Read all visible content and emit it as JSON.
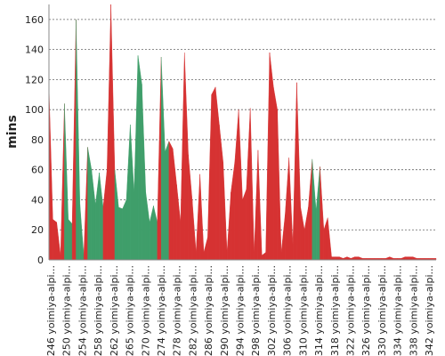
{
  "chart_data": {
    "type": "area",
    "title": "",
    "xlabel": "",
    "ylabel": "mins",
    "ylim": [
      0,
      170
    ],
    "yticks": [
      0,
      20,
      40,
      60,
      80,
      100,
      120,
      140,
      160
    ],
    "grid": true,
    "x_tick_labels": [
      "#246 yoimiya-alpi...",
      "#250 yoimiya-alpi...",
      "#254 yoimiya-alpi...",
      "#258 yoimiya-alpi...",
      "#262 yoimiya-alpi...",
      "#265 yoimiya-alpi...",
      "#270 yoimiya-alpi...",
      "#274 yoimiya-alpi...",
      "#278 yoimiya-alpi...",
      "#282 yoimiya-alpi...",
      "#286 yoimiya-alpi...",
      "#290 yoimiya-alpi...",
      "#294 yoimiya-alpi...",
      "#298 yoimiya-alpi...",
      "#302 yoimiya-alpi...",
      "#306 yoimiya-alpi...",
      "#310 yoimiya-alpi...",
      "#314 yoimiya-alpi...",
      "#318 yoimiya-alpi...",
      "#322 yoimiya-alpi...",
      "#326 yoimiya-alpi...",
      "#330 yoimiya-alpi...",
      "#334 yoimiya-alpi...",
      "#338 yoimiya-alpi...",
      "#342 yoimiya-alpi..."
    ],
    "values": [
      116,
      27,
      25,
      3,
      104,
      27,
      24,
      160,
      37,
      3,
      75,
      60,
      37,
      58,
      35,
      60,
      170,
      60,
      35,
      34,
      40,
      90,
      45,
      136,
      117,
      45,
      25,
      36,
      25,
      135,
      72,
      79,
      74,
      50,
      25,
      138,
      70,
      40,
      5,
      57,
      5,
      15,
      110,
      115,
      90,
      65,
      5,
      45,
      65,
      100,
      40,
      47,
      101,
      5,
      73,
      3,
      5,
      138,
      115,
      100,
      5,
      30,
      68,
      10,
      118,
      35,
      20,
      35,
      67,
      33,
      62,
      20,
      28,
      2,
      2,
      2,
      1,
      2,
      1,
      2,
      2,
      1,
      1,
      1,
      1,
      1,
      1,
      1,
      2,
      1,
      1,
      1,
      2,
      2,
      2,
      1,
      1,
      1,
      1,
      1,
      1
    ],
    "status": [
      "fail",
      "fail",
      "fail",
      "fail",
      "pass",
      "pass",
      "fail",
      "pass",
      "pass",
      "fail",
      "pass",
      "pass",
      "pass",
      "pass",
      "fail",
      "fail",
      "fail",
      "pass",
      "pass",
      "pass",
      "pass",
      "pass",
      "pass",
      "pass",
      "pass",
      "pass",
      "pass",
      "pass",
      "fail",
      "pass",
      "pass",
      "fail",
      "fail",
      "fail",
      "fail",
      "fail",
      "fail",
      "fail",
      "fail",
      "fail",
      "fail",
      "fail",
      "fail",
      "fail",
      "fail",
      "fail",
      "fail",
      "fail",
      "fail",
      "fail",
      "fail",
      "fail",
      "fail",
      "fail",
      "fail",
      "fail",
      "fail",
      "fail",
      "fail",
      "fail",
      "fail",
      "fail",
      "fail",
      "fail",
      "fail",
      "fail",
      "fail",
      "fail",
      "pass",
      "pass",
      "fail",
      "fail",
      "fail",
      "fail",
      "fail",
      "fail",
      "fail",
      "fail",
      "fail",
      "fail",
      "fail",
      "fail",
      "fail",
      "fail",
      "fail",
      "fail",
      "fail",
      "fail",
      "fail",
      "fail",
      "fail",
      "fail",
      "fail",
      "fail",
      "fail",
      "fail",
      "fail",
      "fail",
      "fail",
      "fail",
      "fail"
    ],
    "colors": {
      "pass": "#3f9e6a",
      "fail": "#d63232",
      "grid": "#666666",
      "axis": "#888888"
    }
  }
}
